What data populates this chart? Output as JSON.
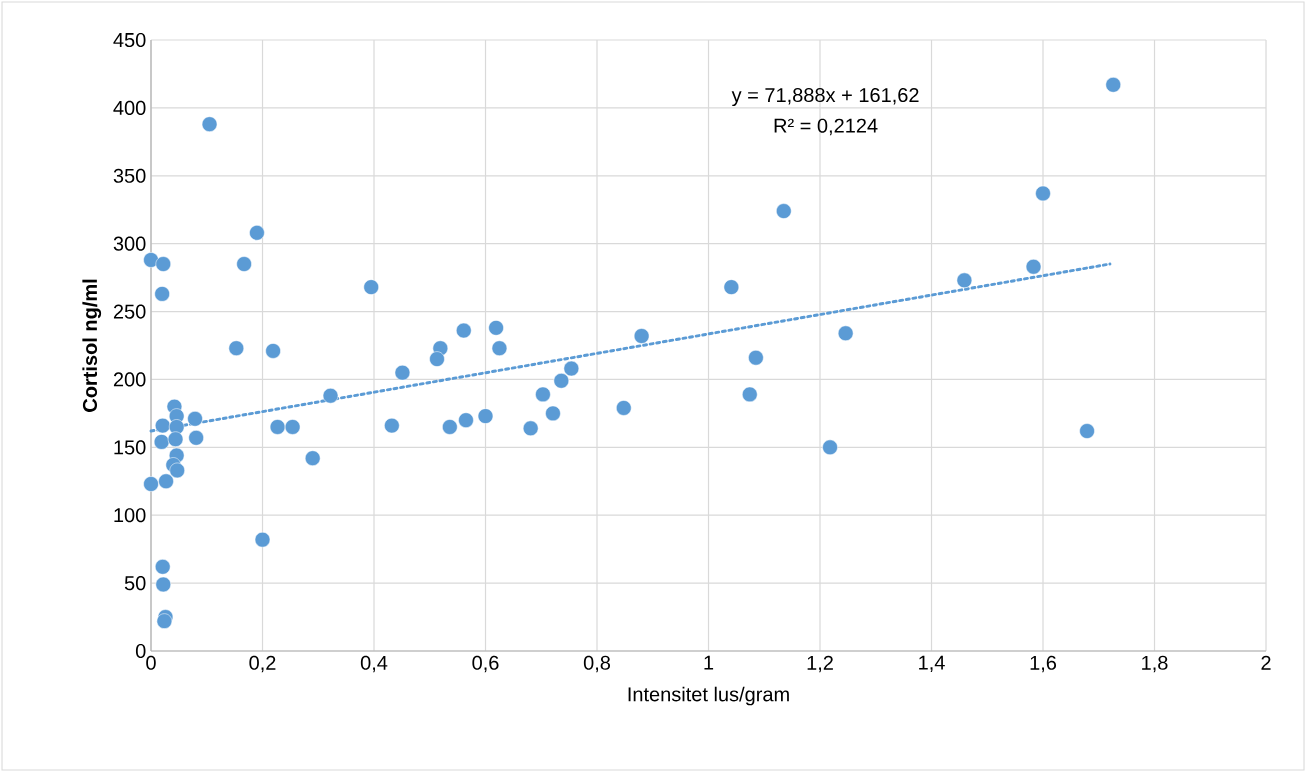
{
  "chart_data": {
    "type": "scatter",
    "xlabel": "Intensitet lus/gram",
    "ylabel": "Cortisol ng/ml",
    "series": [
      {
        "color": "#5b9bd5",
        "marker": "circle",
        "x": [
          0.105,
          0.19,
          0,
          0.022,
          0.167,
          0.02,
          0.395,
          0.153,
          0.219,
          0.451,
          0.322,
          0.042,
          0.046,
          0.079,
          0.021,
          0.046,
          0.227,
          0.254,
          0.432,
          0.019,
          0.044,
          0.081,
          0.046,
          0.04,
          0.047,
          0,
          0.027,
          0.29,
          0.2,
          0.021,
          0.022,
          0.026,
          0.024,
          0.519,
          0.513,
          0.561,
          0.536,
          0.565,
          0.6,
          0.619,
          0.625,
          0.681,
          0.703,
          0.721,
          0.736,
          0.754,
          0.848,
          0.88,
          1.041,
          1.085,
          1.074,
          1.135,
          1.726,
          1.6,
          1.583,
          1.459,
          1.246,
          1.218,
          1.679
        ],
        "values": [
          388,
          308,
          288,
          285,
          285,
          263,
          268,
          223,
          221,
          205,
          188,
          180,
          173,
          171,
          166,
          165,
          165,
          165,
          166,
          154,
          156,
          157,
          144,
          137,
          133,
          123,
          125,
          142,
          82,
          62,
          49,
          25,
          22,
          223,
          215,
          236,
          165,
          170,
          173,
          238,
          223,
          164,
          189,
          175,
          199,
          208,
          179,
          232,
          268,
          216,
          189,
          324,
          417,
          337,
          283,
          273,
          234,
          150,
          162
        ]
      },
      {
        "type": "line",
        "color": "#5b9bd5",
        "line_style": "dotted",
        "marker": "none",
        "x": [
          0,
          1.72
        ],
        "values": [
          162,
          285
        ]
      }
    ],
    "annotations": [
      "y = 71,888x + 161,62",
      "R² = 0,2124"
    ],
    "xlim": [
      0,
      2
    ],
    "ylim": [
      0,
      450
    ],
    "xticks": [
      0,
      {
        "value": 0.2,
        "label": "0,2"
      },
      {
        "value": 0.4,
        "label": "0,4"
      },
      {
        "value": 0.6,
        "label": "0,6"
      },
      {
        "value": 0.8,
        "label": "0,8"
      },
      1,
      {
        "value": 1.2,
        "label": "1,2"
      },
      {
        "value": 1.4,
        "label": "1,4"
      },
      {
        "value": 1.6,
        "label": "1,6"
      },
      {
        "value": 1.8,
        "label": "1,8"
      },
      2
    ],
    "yticks": [
      0,
      50,
      100,
      150,
      200,
      250,
      300,
      350,
      400,
      450
    ],
    "grid": true
  }
}
